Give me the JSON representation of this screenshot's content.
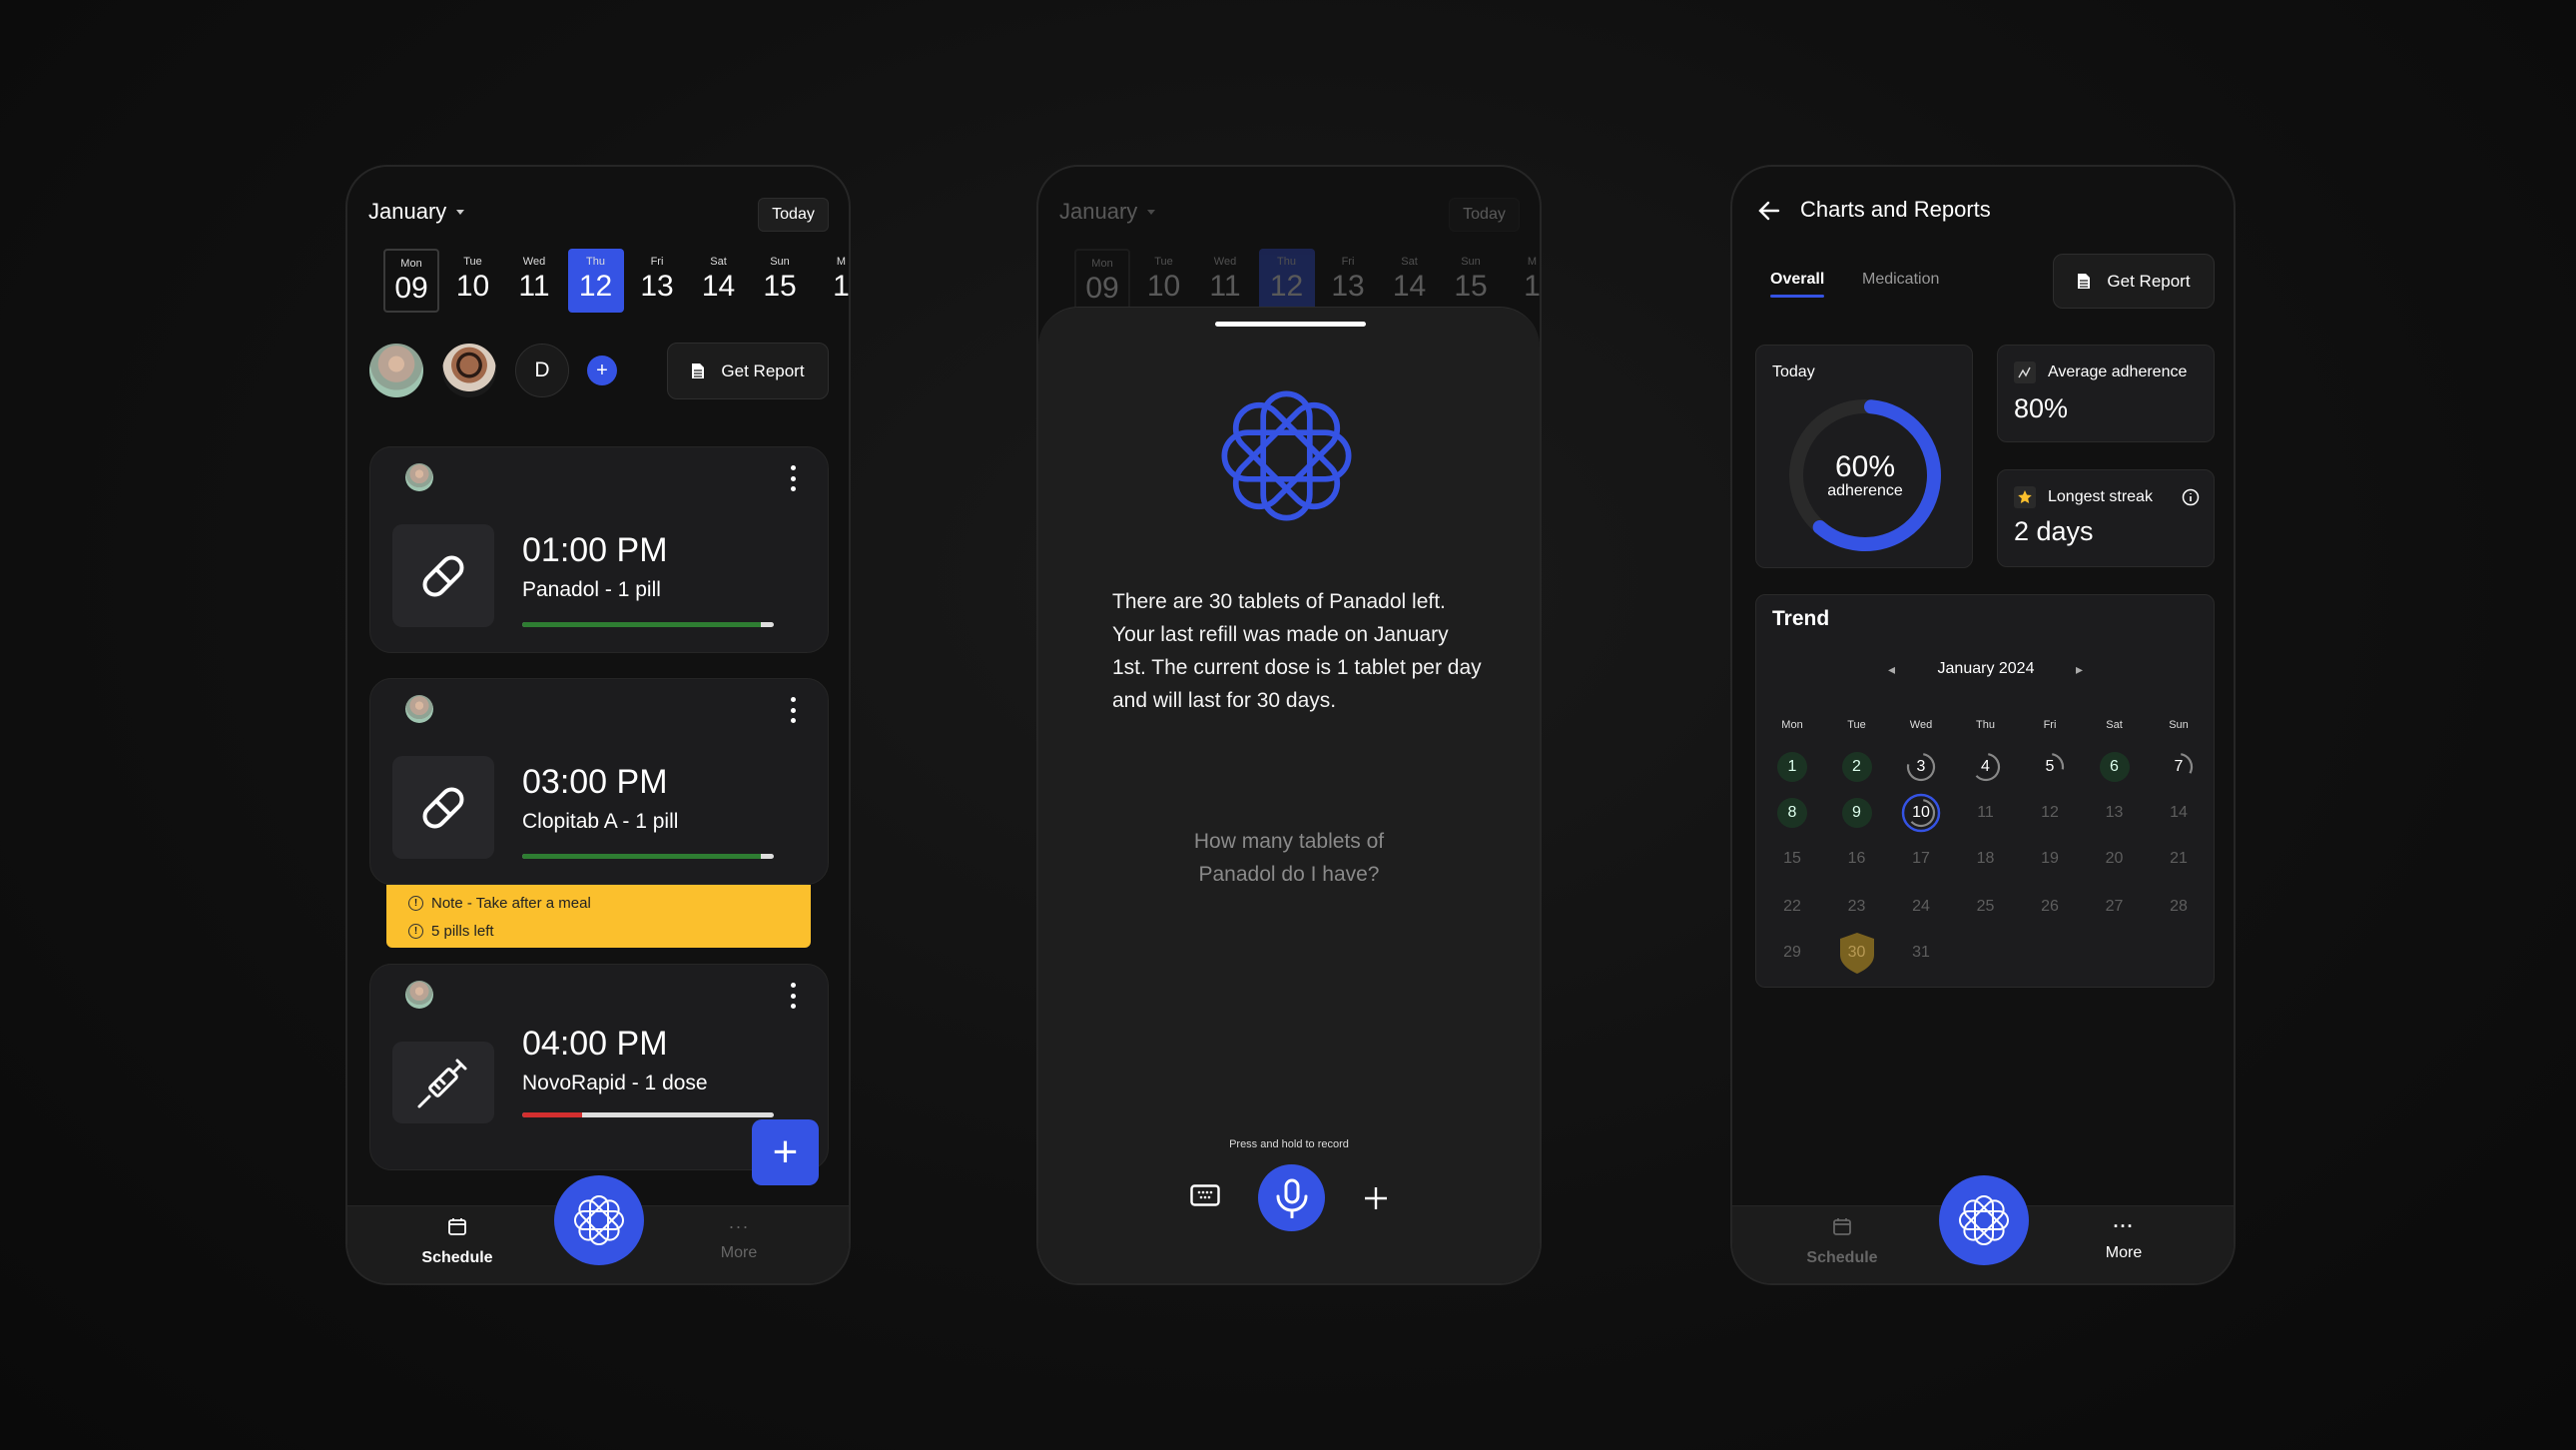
{
  "colors": {
    "accent": "#3553e4",
    "success": "#2e7d32",
    "danger": "#d32f2f",
    "warning": "#fbc02d",
    "gold": "#8a6d1f"
  },
  "schedule": {
    "month": "January",
    "today_label": "Today",
    "days": [
      {
        "name": "Mon",
        "date": "09",
        "state": "current"
      },
      {
        "name": "Tue",
        "date": "10"
      },
      {
        "name": "Wed",
        "date": "11"
      },
      {
        "name": "Thu",
        "date": "12",
        "state": "selected"
      },
      {
        "name": "Fri",
        "date": "13"
      },
      {
        "name": "Sat",
        "date": "14"
      },
      {
        "name": "Sun",
        "date": "15"
      },
      {
        "name": "M",
        "date": "1"
      }
    ],
    "profile_initial": "D",
    "get_report": "Get Report",
    "meds": [
      {
        "time": "01:00 PM",
        "name": "Panadol - 1 pill",
        "icon": "pill-icon",
        "progress": 0.95,
        "bar_color": "#2e7d32"
      },
      {
        "time": "03:00 PM",
        "name": "Clopitab A - 1 pill",
        "icon": "pill-icon",
        "progress": 0.95,
        "bar_color": "#2e7d32"
      },
      {
        "time": "04:00 PM",
        "name": "NovoRapid - 1 dose",
        "icon": "syringe-icon",
        "progress": 0.24,
        "bar_color": "#d32f2f"
      }
    ],
    "note": {
      "line1": "Note - Take after a meal",
      "line2": "5 pills left"
    }
  },
  "nav": {
    "schedule": "Schedule",
    "more": "More"
  },
  "assistant": {
    "answer": "There are 30 tablets of Panadol left. Your last refill was made on January 1st. The current dose is 1 tablet per day and will last for 30 days.",
    "question": "How many tablets of Panadol do I have?",
    "hint": "Press and hold to record"
  },
  "reports": {
    "title": "Charts and Reports",
    "tabs": [
      "Overall",
      "Medication"
    ],
    "active_tab": "Overall",
    "get_report": "Get Report",
    "today": {
      "label": "Today",
      "value": "60%",
      "sub": "adherence",
      "fraction": 0.6
    },
    "average": {
      "label": "Average adherence",
      "value": "80%"
    },
    "streak": {
      "label": "Longest streak",
      "value": "2 days"
    },
    "trend": {
      "title": "Trend",
      "month": "January 2024",
      "weekdays": [
        "Mon",
        "Tue",
        "Wed",
        "Thu",
        "Fri",
        "Sat",
        "Sun"
      ],
      "days": [
        {
          "d": "1",
          "s": "done"
        },
        {
          "d": "2",
          "s": "done"
        },
        {
          "d": "3",
          "s": "partial",
          "p": 0.75
        },
        {
          "d": "4",
          "s": "partial",
          "p": 0.6
        },
        {
          "d": "5",
          "s": "partial",
          "p": 0.25
        },
        {
          "d": "6",
          "s": "done"
        },
        {
          "d": "7",
          "s": "partial",
          "p": 0.3
        },
        {
          "d": "8",
          "s": "done"
        },
        {
          "d": "9",
          "s": "done"
        },
        {
          "d": "10",
          "s": "today",
          "p": 0.6
        },
        {
          "d": "11"
        },
        {
          "d": "12"
        },
        {
          "d": "13"
        },
        {
          "d": "14"
        },
        {
          "d": "15"
        },
        {
          "d": "16"
        },
        {
          "d": "17"
        },
        {
          "d": "18"
        },
        {
          "d": "19"
        },
        {
          "d": "20"
        },
        {
          "d": "21"
        },
        {
          "d": "22"
        },
        {
          "d": "23"
        },
        {
          "d": "24"
        },
        {
          "d": "25"
        },
        {
          "d": "26"
        },
        {
          "d": "27"
        },
        {
          "d": "28"
        },
        {
          "d": "29"
        },
        {
          "d": "30",
          "s": "badge"
        },
        {
          "d": "31"
        }
      ]
    }
  }
}
